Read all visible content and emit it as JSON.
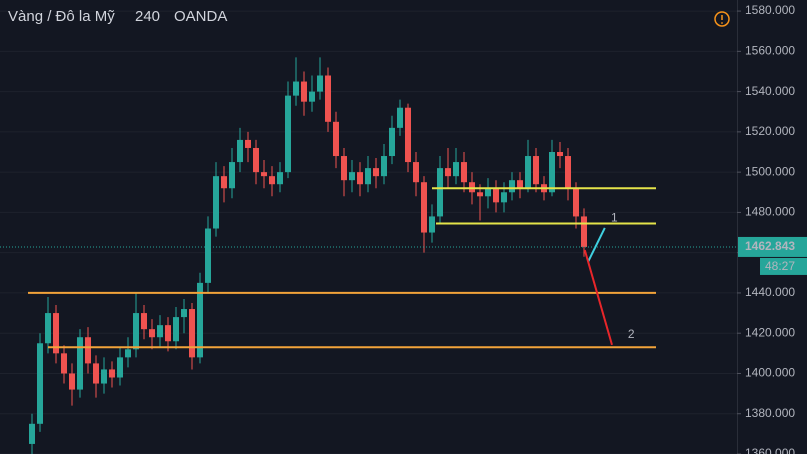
{
  "chart_data": {
    "type": "candlestick",
    "title": "Vàng / Đô la Mỹ",
    "interval": "240",
    "source": "OANDA",
    "countdown": "48:27",
    "up_color": "#26a69a",
    "down_color": "#ef5350",
    "grid": true,
    "ylim": [
      1360,
      1585.5
    ],
    "yticks": [
      {
        "value": 1360,
        "label": "1360.000"
      },
      {
        "value": 1380,
        "label": "1380.000"
      },
      {
        "value": 1400,
        "label": "1400.000"
      },
      {
        "value": 1420,
        "label": "1420.000"
      },
      {
        "value": 1440,
        "label": "1440.000"
      },
      {
        "value": 1460,
        "label": "1460.000"
      },
      {
        "value": 1480,
        "label": "1480.000"
      },
      {
        "value": 1500,
        "label": "1500.000"
      },
      {
        "value": 1520,
        "label": "1520.000"
      },
      {
        "value": 1540,
        "label": "1540.000"
      },
      {
        "value": 1560,
        "label": "1560.000"
      },
      {
        "value": 1580,
        "label": "1580.000"
      }
    ],
    "categories": [
      null,
      null,
      null,
      null,
      null,
      null,
      null,
      null,
      null,
      null,
      null,
      null,
      null,
      null,
      null,
      null,
      null,
      null,
      null,
      null,
      null,
      null,
      null,
      null,
      null,
      null,
      null,
      null,
      null,
      null,
      null,
      null,
      null,
      null,
      null,
      null,
      null,
      null,
      null,
      null,
      null,
      null,
      null,
      null,
      null,
      null,
      null,
      null,
      null,
      null,
      null,
      null,
      null,
      null,
      null,
      null,
      null,
      null,
      null,
      null,
      null,
      null,
      null,
      null,
      null,
      null,
      null,
      null,
      null,
      null
    ],
    "open": [
      1365,
      1375,
      1415,
      1430,
      1410,
      1400,
      1392,
      1418,
      1405,
      1395,
      1402,
      1398,
      1408,
      1412,
      1430,
      1422,
      1418,
      1424,
      1416,
      1428,
      1432,
      1408,
      1445,
      1472,
      1498,
      1492,
      1505,
      1516,
      1512,
      1500,
      1498,
      1494,
      1500,
      1538,
      1545,
      1535,
      1540,
      1548,
      1525,
      1508,
      1496,
      1500,
      1494,
      1502,
      1498,
      1508,
      1522,
      1532,
      1505,
      1495,
      1470,
      1478,
      1502,
      1498,
      1505,
      1495,
      1490,
      1488,
      1492,
      1485,
      1490,
      1496,
      1492,
      1508,
      1494,
      1490,
      1510,
      1508,
      1492,
      1478
    ],
    "high": [
      1380,
      1420,
      1438,
      1434,
      1414,
      1405,
      1422,
      1423,
      1409,
      1408,
      1406,
      1413,
      1418,
      1440,
      1434,
      1427,
      1429,
      1428,
      1433,
      1437,
      1435,
      1450,
      1478,
      1505,
      1503,
      1512,
      1522,
      1520,
      1516,
      1506,
      1503,
      1505,
      1545,
      1557,
      1550,
      1548,
      1557,
      1552,
      1530,
      1512,
      1506,
      1505,
      1508,
      1507,
      1514,
      1528,
      1536,
      1534,
      1510,
      1498,
      1484,
      1508,
      1512,
      1512,
      1510,
      1500,
      1494,
      1497,
      1496,
      1495,
      1500,
      1500,
      1516,
      1512,
      1498,
      1516,
      1515,
      1512,
      1495,
      1482
    ],
    "low": [
      1360,
      1371,
      1410,
      1405,
      1395,
      1384,
      1388,
      1400,
      1388,
      1390,
      1393,
      1394,
      1403,
      1408,
      1417,
      1412,
      1413,
      1411,
      1412,
      1420,
      1402,
      1405,
      1440,
      1468,
      1485,
      1487,
      1500,
      1505,
      1494,
      1492,
      1488,
      1490,
      1497,
      1533,
      1528,
      1530,
      1536,
      1520,
      1502,
      1488,
      1490,
      1488,
      1490,
      1492,
      1494,
      1504,
      1518,
      1500,
      1488,
      1460,
      1465,
      1474,
      1492,
      1494,
      1490,
      1484,
      1476,
      1482,
      1480,
      1480,
      1486,
      1487,
      1490,
      1490,
      1486,
      1488,
      1502,
      1486,
      1472,
      1458
    ],
    "close": [
      1375,
      1415,
      1430,
      1410,
      1400,
      1392,
      1418,
      1405,
      1395,
      1402,
      1398,
      1408,
      1412,
      1430,
      1422,
      1418,
      1424,
      1416,
      1428,
      1432,
      1408,
      1445,
      1472,
      1498,
      1492,
      1505,
      1516,
      1512,
      1500,
      1498,
      1494,
      1500,
      1538,
      1545,
      1535,
      1540,
      1548,
      1525,
      1508,
      1496,
      1500,
      1494,
      1502,
      1498,
      1508,
      1522,
      1532,
      1505,
      1495,
      1470,
      1478,
      1502,
      1498,
      1505,
      1495,
      1490,
      1488,
      1492,
      1485,
      1490,
      1496,
      1492,
      1508,
      1494,
      1490,
      1510,
      1508,
      1492,
      1478,
      1462.843
    ],
    "levels": [
      {
        "value": 1492,
        "from": 50,
        "to": 78,
        "color": "#e4e44a"
      },
      {
        "value": 1474.5,
        "from": 50.5,
        "to": 78,
        "color": "#e4e44a"
      },
      {
        "value": 1440,
        "from": -0.5,
        "to": 78,
        "color": "#f2a33a"
      },
      {
        "value": 1413,
        "from": 2,
        "to": 78,
        "color": "#f2a33a"
      }
    ],
    "trend_lines": [
      {
        "x": [
          69.5,
          71.6
        ],
        "y": [
          1455.4,
          1472.3
        ],
        "color": "#3fd0e0"
      },
      {
        "x": [
          69.1,
          72.5
        ],
        "y": [
          1461.3,
          1414.2
        ],
        "color": "#e8262a"
      }
    ],
    "annotations": [
      {
        "text": "1",
        "x": 72.8,
        "y": 1477,
        "color": "#3fd0e0"
      },
      {
        "text": "2",
        "x": 74.9,
        "y": 1419.3,
        "color": "#e8262a"
      }
    ]
  }
}
